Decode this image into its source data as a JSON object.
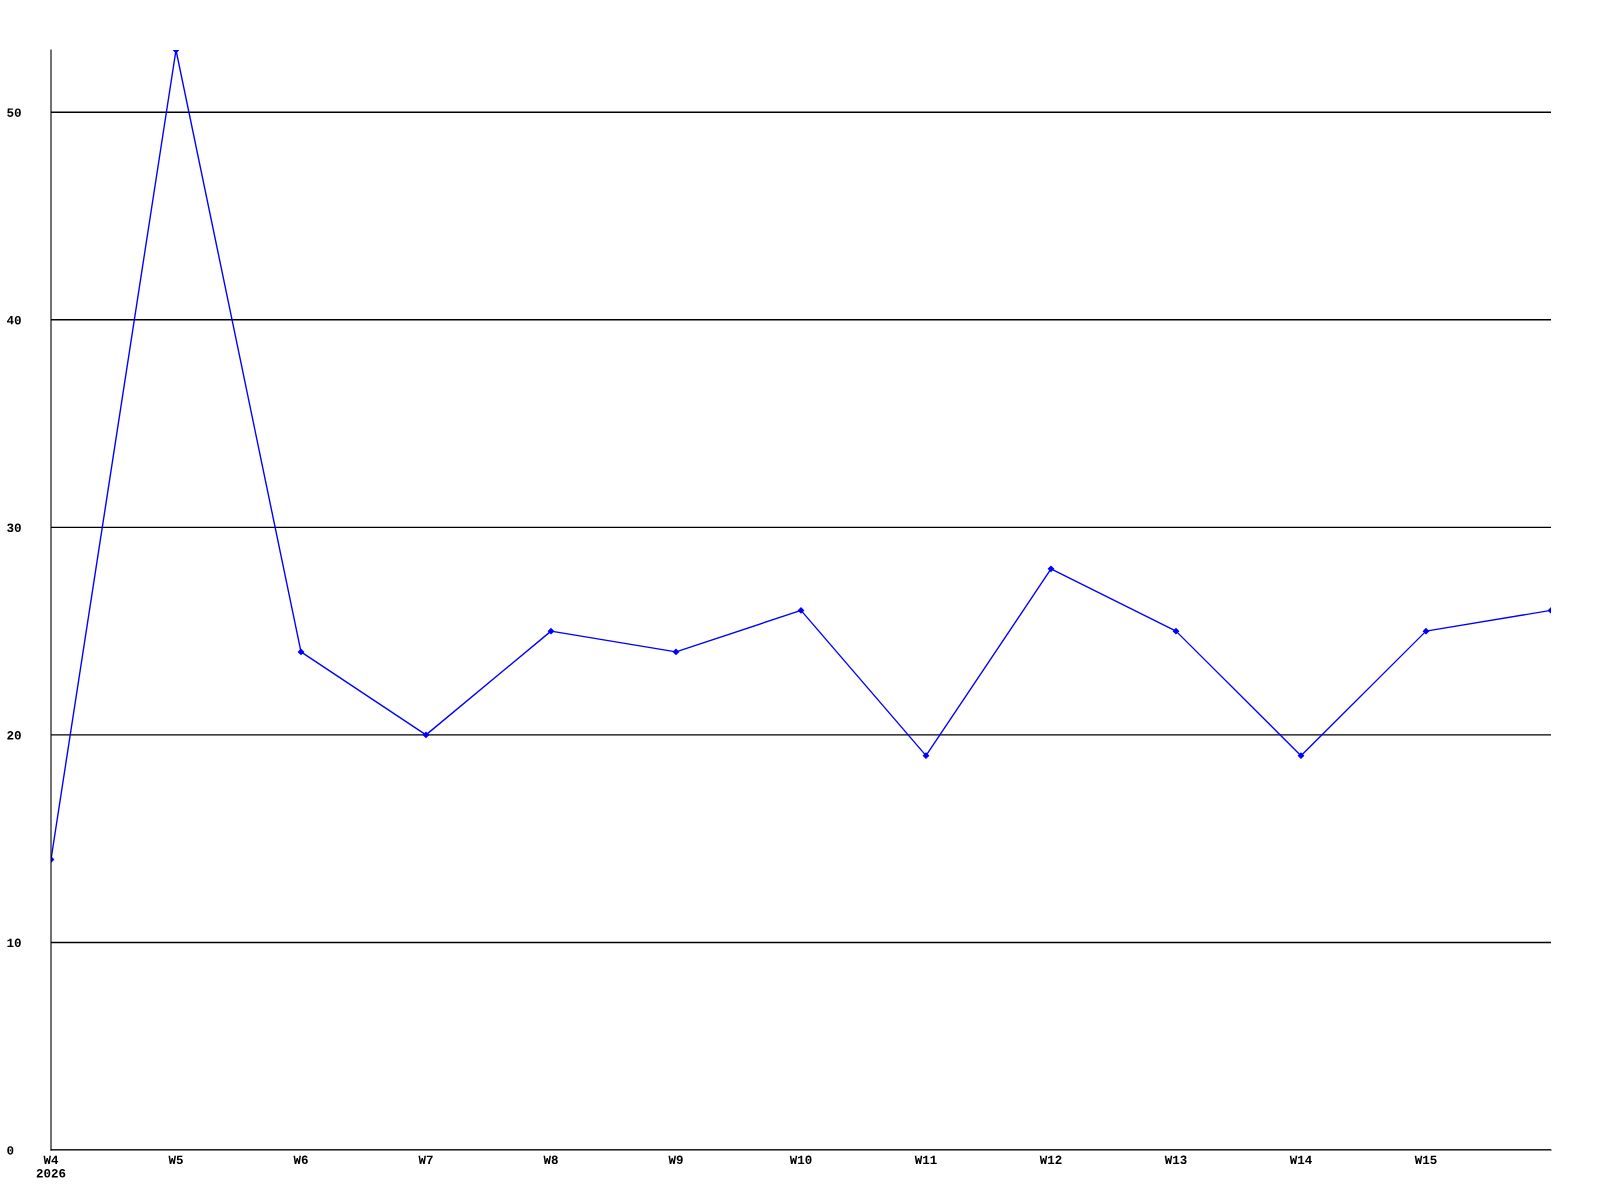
{
  "chart_data": {
    "type": "line",
    "categories": [
      "W4\n2026",
      "W5",
      "W6",
      "W7",
      "W8",
      "W9",
      "W10",
      "W11",
      "W12",
      "W13",
      "W14",
      "W15",
      null
    ],
    "series": [
      {
        "color": "#0000ff",
        "values": [
          14,
          53,
          24,
          20,
          25,
          24,
          26,
          19,
          28,
          25,
          19,
          25,
          26
        ]
      }
    ],
    "ylim": [
      0,
      53
    ],
    "yticks": [
      0,
      10,
      20,
      30,
      40,
      50
    ],
    "grid": "y",
    "marker": "diamond",
    "line_style": "solid"
  }
}
